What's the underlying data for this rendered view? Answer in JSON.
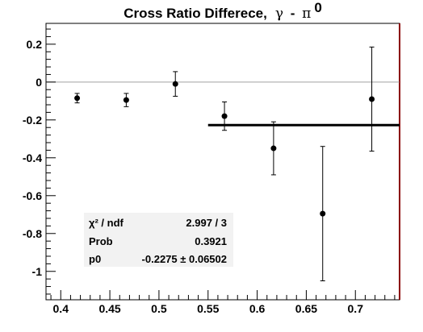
{
  "chart_data": {
    "type": "scatter",
    "title": "Cross Ratio Differece,",
    "title_symbols": {
      "gamma": "γ",
      "dash": " - ",
      "pi": "π",
      "pi_sup": "0"
    },
    "xlim": [
      0.385,
      0.745
    ],
    "ylim": [
      -1.15,
      0.31
    ],
    "x_ticks": [
      "0.4",
      "0.45",
      "0.5",
      "0.55",
      "0.6",
      "0.65",
      "0.7"
    ],
    "y_ticks": [
      "0.2",
      "0",
      "-0.2",
      "-0.4",
      "-0.6",
      "-0.8",
      "-1"
    ],
    "points": [
      {
        "x": 0.4167,
        "y": -0.085,
        "err": 0.025
      },
      {
        "x": 0.4667,
        "y": -0.095,
        "err": 0.035
      },
      {
        "x": 0.5167,
        "y": -0.01,
        "err": 0.065
      },
      {
        "x": 0.5667,
        "y": -0.18,
        "err": 0.075
      },
      {
        "x": 0.6167,
        "y": -0.35,
        "err": 0.14
      },
      {
        "x": 0.6667,
        "y": -0.695,
        "err": 0.355
      },
      {
        "x": 0.7167,
        "y": -0.09,
        "err": 0.275
      }
    ],
    "reference_line_y": 0,
    "fit": {
      "x_range": [
        0.55,
        0.745
      ],
      "p0": -0.2275
    },
    "fit_box": {
      "rows": [
        {
          "label": "χ² / ndf",
          "value": "2.997 / 3"
        },
        {
          "label": "Prob",
          "value": "0.3921"
        },
        {
          "label": "p0",
          "value": "-0.2275 ± 0.06502"
        }
      ]
    },
    "colors": {
      "frame": "#000000",
      "zero_line": "#a0a0a0",
      "right_edge": "#8b0000",
      "fit_line": "#000000",
      "stats_box": "#f2f2f2"
    }
  }
}
